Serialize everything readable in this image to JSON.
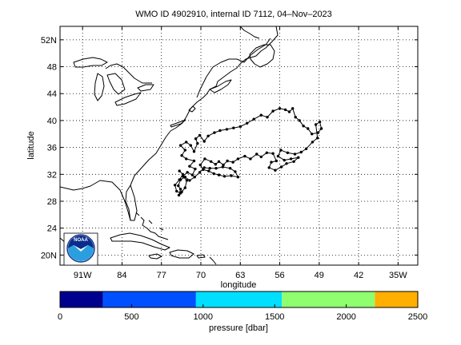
{
  "title": "WMO ID 4902910, internal ID 7112, 04–Nov–2023",
  "map": {
    "xlabel": "longitude",
    "ylabel": "latitude",
    "xlim_lon": [
      -95,
      -31.5
    ],
    "ylim_lat": [
      18.5,
      54
    ],
    "grid": true,
    "x_ticks": [
      {
        "lon": -91,
        "label": "91W"
      },
      {
        "lon": -84,
        "label": "84"
      },
      {
        "lon": -77,
        "label": "77"
      },
      {
        "lon": -70,
        "label": "70"
      },
      {
        "lon": -63,
        "label": "63"
      },
      {
        "lon": -56,
        "label": "56"
      },
      {
        "lon": -49,
        "label": "49"
      },
      {
        "lon": -42,
        "label": "42"
      },
      {
        "lon": -35,
        "label": "35W"
      }
    ],
    "y_ticks": [
      {
        "lat": 20,
        "label": "20N"
      },
      {
        "lat": 24,
        "label": "24"
      },
      {
        "lat": 28,
        "label": "28"
      },
      {
        "lat": 32,
        "label": "32"
      },
      {
        "lat": 36,
        "label": "36"
      },
      {
        "lat": 40,
        "label": "40"
      },
      {
        "lat": 44,
        "label": "44"
      },
      {
        "lat": 48,
        "label": "48"
      },
      {
        "lat": 52,
        "label": "52N"
      }
    ]
  },
  "track": [
    [
      -73.8,
      32.5
    ],
    [
      -73.2,
      32.0
    ],
    [
      -73.8,
      31.2
    ],
    [
      -74.6,
      30.4
    ],
    [
      -74.3,
      29.5
    ],
    [
      -73.6,
      29.2
    ],
    [
      -72.8,
      30.0
    ],
    [
      -72.5,
      31.1
    ],
    [
      -73.2,
      31.7
    ],
    [
      -72.4,
      32.3
    ],
    [
      -71.5,
      31.9
    ],
    [
      -71.0,
      32.8
    ],
    [
      -72.0,
      33.2
    ],
    [
      -71.2,
      34.0
    ],
    [
      -72.6,
      34.3
    ],
    [
      -73.4,
      34.8
    ],
    [
      -72.8,
      35.6
    ],
    [
      -73.6,
      36.3
    ],
    [
      -72.6,
      36.8
    ],
    [
      -71.8,
      36.3
    ],
    [
      -71.2,
      35.4
    ],
    [
      -70.6,
      36.6
    ],
    [
      -70.9,
      37.3
    ],
    [
      -70.2,
      37.8
    ],
    [
      -69.4,
      36.9
    ],
    [
      -68.7,
      37.7
    ],
    [
      -67.6,
      38.2
    ],
    [
      -66.6,
      38.5
    ],
    [
      -65.4,
      38.7
    ],
    [
      -64.2,
      38.9
    ],
    [
      -63.0,
      39.1
    ],
    [
      -61.8,
      39.6
    ],
    [
      -60.6,
      40.2
    ],
    [
      -59.3,
      40.8
    ],
    [
      -58.2,
      40.5
    ],
    [
      -57.2,
      41.4
    ],
    [
      -56.0,
      41.8
    ],
    [
      -55.0,
      41.6
    ],
    [
      -54.3,
      41.3
    ],
    [
      -53.7,
      41.8
    ],
    [
      -53.2,
      40.5
    ],
    [
      -52.5,
      40.0
    ],
    [
      -51.8,
      39.2
    ],
    [
      -51.0,
      38.8
    ],
    [
      -50.3,
      38.0
    ],
    [
      -49.2,
      38.2
    ],
    [
      -48.6,
      38.8
    ],
    [
      -48.9,
      39.8
    ],
    [
      -49.6,
      39.4
    ],
    [
      -49.3,
      37.4
    ],
    [
      -50.2,
      36.8
    ],
    [
      -51.3,
      35.8
    ],
    [
      -52.2,
      35.3
    ],
    [
      -53.3,
      35.0
    ],
    [
      -54.6,
      35.2
    ],
    [
      -55.8,
      35.6
    ],
    [
      -56.3,
      34.7
    ],
    [
      -55.2,
      34.1
    ],
    [
      -54.0,
      34.3
    ],
    [
      -52.7,
      34.5
    ],
    [
      -53.5,
      33.9
    ],
    [
      -54.8,
      33.6
    ],
    [
      -55.7,
      33.1
    ],
    [
      -56.8,
      32.6
    ],
    [
      -57.9,
      33.0
    ],
    [
      -57.5,
      33.8
    ],
    [
      -56.6,
      34.0
    ],
    [
      -57.2,
      35.1
    ],
    [
      -58.3,
      35.2
    ],
    [
      -59.3,
      34.6
    ],
    [
      -60.1,
      35.0
    ],
    [
      -61.2,
      34.3
    ],
    [
      -62.2,
      34.7
    ],
    [
      -63.4,
      34.3
    ],
    [
      -64.3,
      33.8
    ],
    [
      -65.3,
      34.0
    ],
    [
      -66.0,
      33.4
    ],
    [
      -66.8,
      33.9
    ],
    [
      -67.4,
      33.5
    ],
    [
      -68.2,
      33.9
    ],
    [
      -69.3,
      34.3
    ],
    [
      -70.1,
      33.4
    ],
    [
      -69.6,
      32.7
    ],
    [
      -68.6,
      32.5
    ],
    [
      -67.7,
      32.1
    ],
    [
      -66.8,
      31.9
    ],
    [
      -65.8,
      31.7
    ],
    [
      -64.6,
      31.8
    ],
    [
      -63.4,
      31.6
    ],
    [
      -63.9,
      32.4
    ],
    [
      -64.8,
      32.9
    ],
    [
      -66.1,
      33.1
    ],
    [
      -67.3,
      32.9
    ],
    [
      -68.4,
      32.9
    ],
    [
      -69.4,
      33.0
    ],
    [
      -70.2,
      32.3
    ],
    [
      -71.1,
      31.6
    ],
    [
      -72.0,
      31.1
    ],
    [
      -72.8,
      31.6
    ],
    [
      -73.6,
      31.2
    ],
    [
      -74.0,
      30.3
    ],
    [
      -73.6,
      29.8
    ],
    [
      -73.9,
      28.9
    ],
    [
      -73.4,
      29.4
    ]
  ],
  "colorbar": {
    "label": "pressure [dbar]",
    "range": [
      0,
      2500
    ],
    "segments": [
      {
        "min": 0,
        "max": 300,
        "color": "#00008F"
      },
      {
        "min": 300,
        "max": 950,
        "color": "#0050FF"
      },
      {
        "min": 950,
        "max": 1550,
        "color": "#00DFFF"
      },
      {
        "min": 1550,
        "max": 2200,
        "color": "#8FFF6F"
      },
      {
        "min": 2200,
        "max": 2500,
        "color": "#FFAF00"
      }
    ],
    "ticks": [
      {
        "value": 0,
        "label": "0"
      },
      {
        "value": 500,
        "label": "500"
      },
      {
        "value": 1000,
        "label": "1000"
      },
      {
        "value": 1500,
        "label": "1500"
      },
      {
        "value": 2000,
        "label": "2000"
      },
      {
        "value": 2500,
        "label": "2500"
      }
    ]
  },
  "logo": {
    "lettering": "NOAA",
    "colors": {
      "sky": "#0a2c8c",
      "wave": "#2a9fe0",
      "gull": "#ffffff"
    }
  }
}
